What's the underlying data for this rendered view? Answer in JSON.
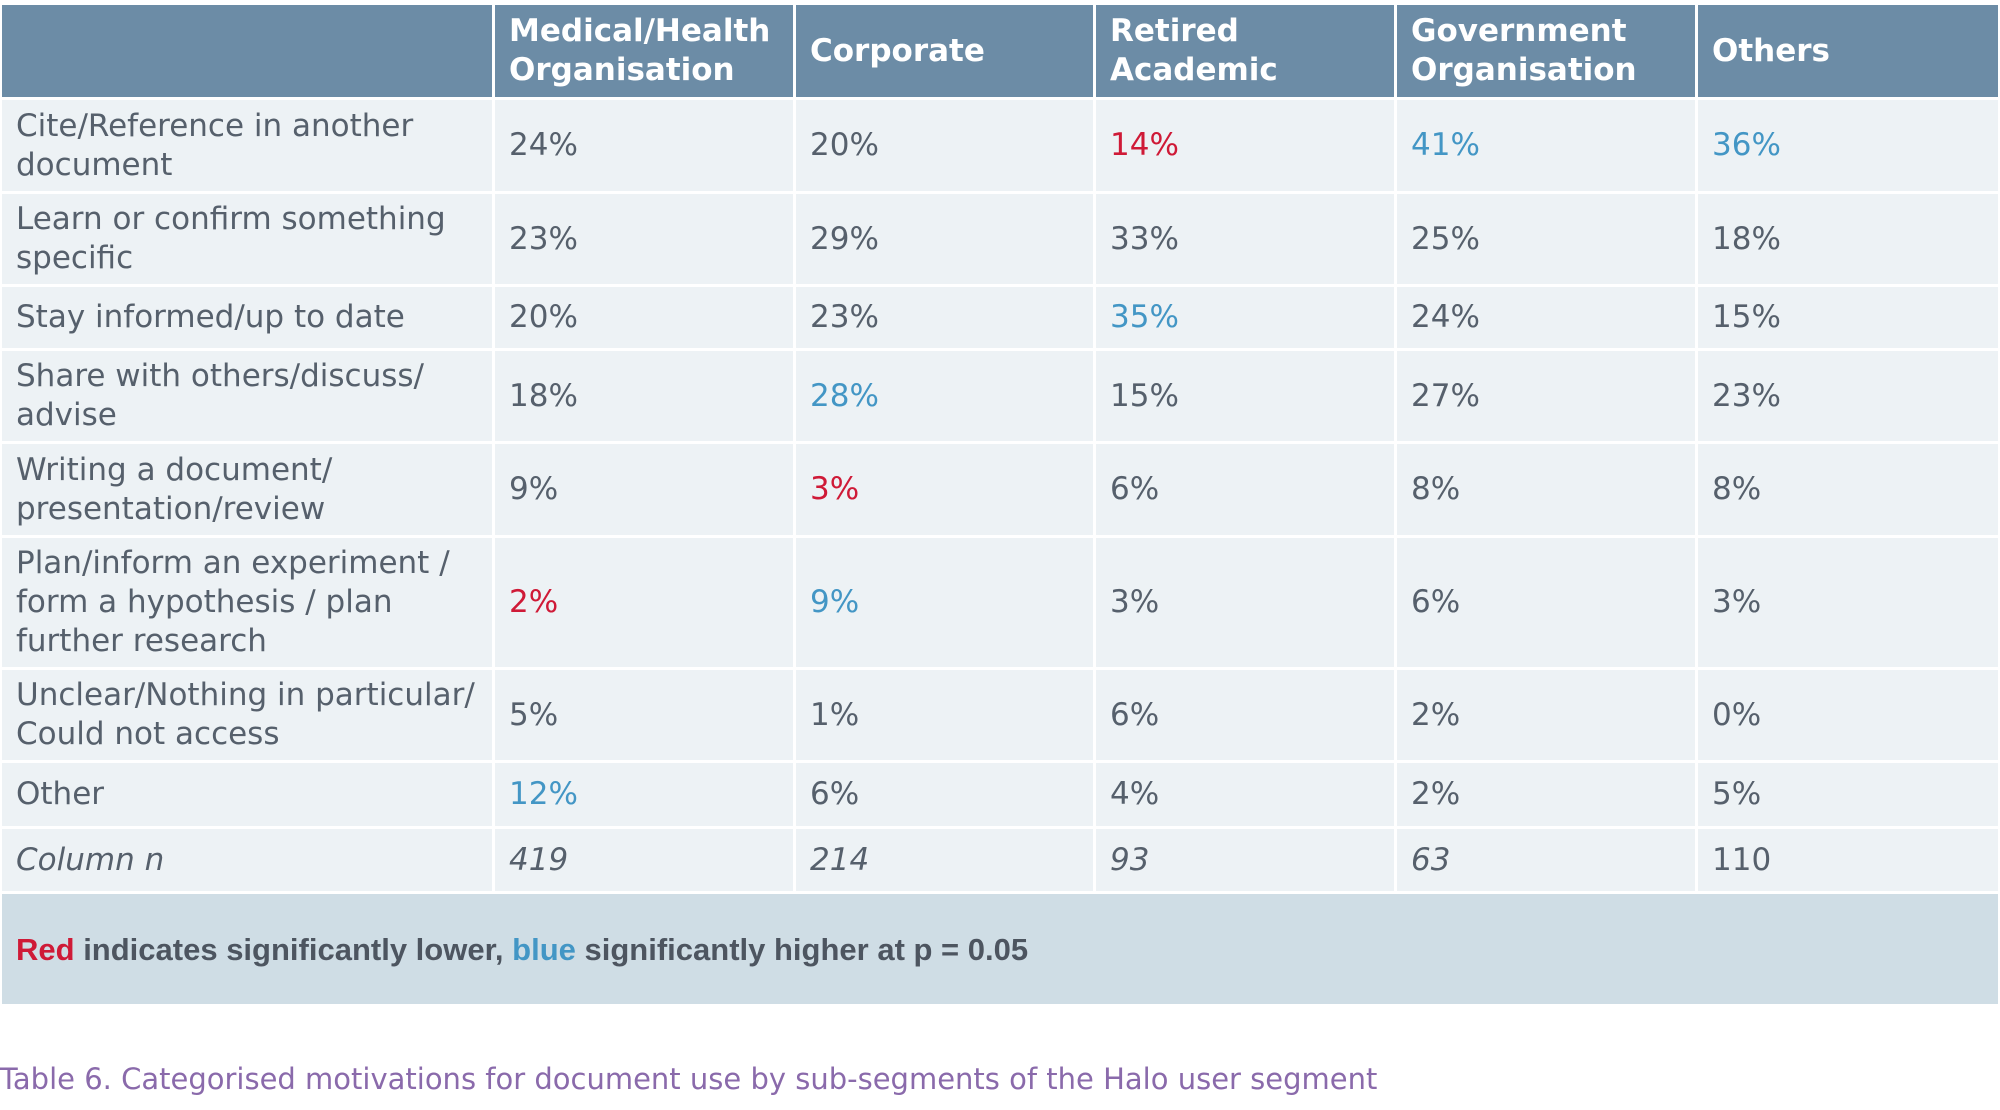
{
  "table": {
    "headers": [
      "",
      "Medical/Health Organisation",
      "Corporate",
      "Retired Academic",
      "Government Organisation",
      "Others"
    ],
    "rows": [
      {
        "label": "Cite/Reference in another document",
        "values": [
          "24%",
          "20%",
          "14%",
          "41%",
          "36%"
        ],
        "significance": [
          "",
          "",
          "lower",
          "higher",
          "higher"
        ]
      },
      {
        "label": "Learn or confirm something specific",
        "values": [
          "23%",
          "29%",
          "33%",
          "25%",
          "18%"
        ],
        "significance": [
          "",
          "",
          "",
          "",
          ""
        ]
      },
      {
        "label": "Stay informed/up to date",
        "values": [
          "20%",
          "23%",
          "35%",
          "24%",
          "15%"
        ],
        "significance": [
          "",
          "",
          "higher",
          "",
          ""
        ]
      },
      {
        "label": "Share with others/discuss/ advise",
        "values": [
          "18%",
          "28%",
          "15%",
          "27%",
          "23%"
        ],
        "significance": [
          "",
          "higher",
          "",
          "",
          ""
        ]
      },
      {
        "label": "Writing a document/ presentation/review",
        "values": [
          "9%",
          "3%",
          "6%",
          "8%",
          "8%"
        ],
        "significance": [
          "",
          "lower",
          "",
          "",
          ""
        ]
      },
      {
        "label": "Plan/inform an experiment / form a hypothesis / plan further research",
        "values": [
          "2%",
          "9%",
          "3%",
          "6%",
          "3%"
        ],
        "significance": [
          "lower",
          "higher",
          "",
          "",
          ""
        ]
      },
      {
        "label": "Unclear/Nothing in particular/ Could not access",
        "values": [
          "5%",
          "1%",
          "6%",
          "2%",
          "0%"
        ],
        "significance": [
          "",
          "",
          "",
          "",
          ""
        ]
      },
      {
        "label": "Other",
        "values": [
          "12%",
          "6%",
          "4%",
          "2%",
          "5%"
        ],
        "significance": [
          "higher",
          "",
          "",
          "",
          ""
        ]
      }
    ],
    "n_row": {
      "label": "Column n",
      "values": [
        "419",
        "214",
        "93",
        "63",
        "110"
      ]
    }
  },
  "legend": {
    "red_word": "Red",
    "middle_text": " indicates significantly lower, ",
    "blue_word": "blue",
    "end_text": " significantly higher at p = 0.05"
  },
  "colors": {
    "header_bg": "#6c8ca6",
    "cell_bg": "#edf2f5",
    "legend_bg": "#cfdde5",
    "significantly_lower": "#cf1a37",
    "significantly_higher": "#4396c5",
    "caption": "#8a6aab"
  },
  "caption": "Table 6. Categorised motivations for document use by sub-segments of the Halo user segment"
}
